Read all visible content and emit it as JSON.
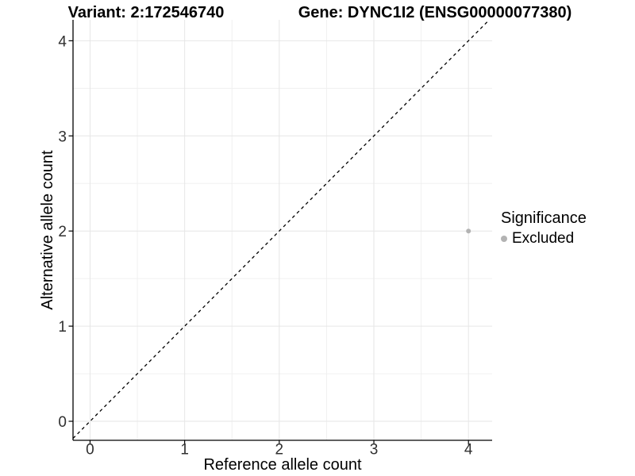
{
  "colors": {
    "background": "#ffffff",
    "excluded_point": "#b3b3b3",
    "grid_major": "#e6e6e6",
    "grid_minor": "#f0f0f0",
    "axis": "#000000",
    "tick_label": "#303030",
    "diagonal_line": "#000000"
  },
  "chart_data": {
    "type": "scatter",
    "title_left": "Variant: 2:172546740",
    "title_right": "Gene: DYNC1I2 (ENSG00000077380)",
    "xlabel": "Reference allele count",
    "ylabel": "Alternative allele count",
    "xlim": [
      -0.18,
      4.25
    ],
    "ylim": [
      -0.2,
      4.22
    ],
    "xticks": [
      0,
      1,
      2,
      3,
      4
    ],
    "yticks": [
      0,
      1,
      2,
      3,
      4
    ],
    "minor_ticks_x": [
      0.5,
      1.5,
      2.5,
      3.5
    ],
    "minor_ticks_y": [
      0.5,
      1.5,
      2.5,
      3.5
    ],
    "grid": true,
    "legend_position": "right",
    "identity_line": {
      "style": "dashed",
      "equation": "y = x"
    },
    "series": [
      {
        "name": "Excluded",
        "color": "#b3b3b3",
        "points": [
          {
            "x": 4,
            "y": 2
          }
        ]
      }
    ],
    "legend": {
      "title": "Significance",
      "entries": [
        {
          "label": "Excluded",
          "color": "#b3b3b3"
        }
      ]
    }
  }
}
